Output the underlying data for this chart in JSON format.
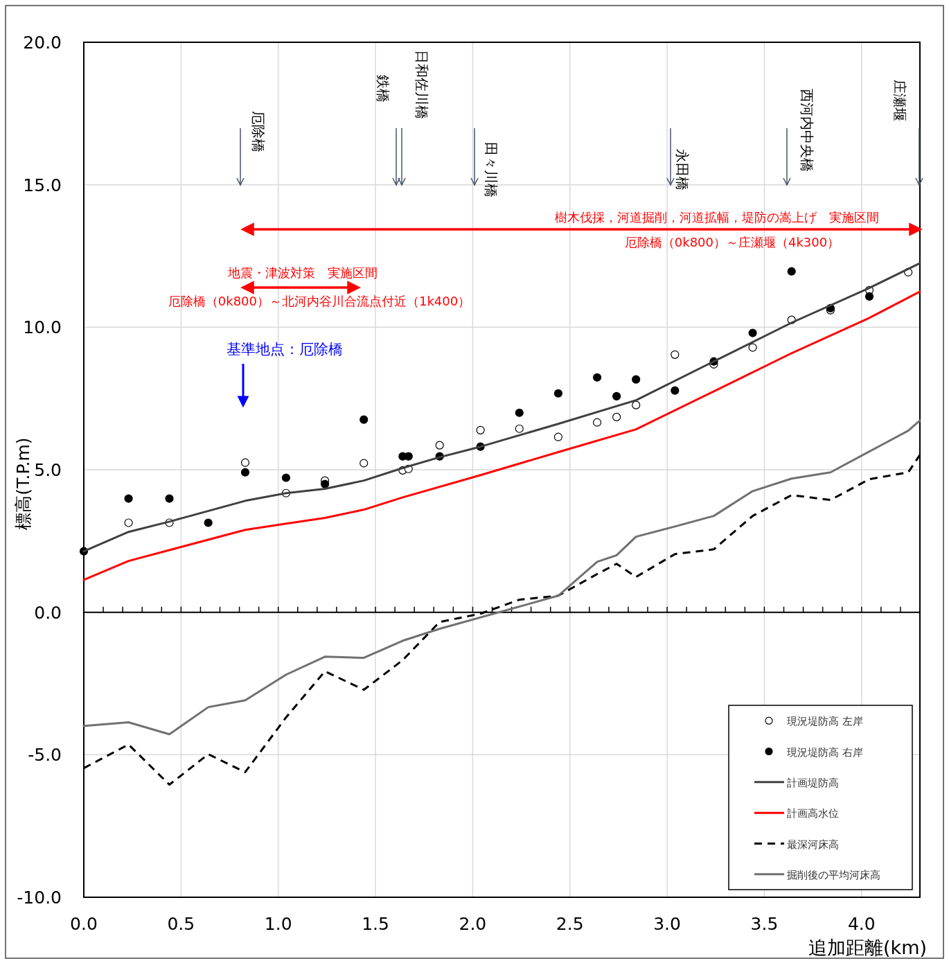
{
  "chart_data": {
    "type": "line",
    "xlabel": "追加距離(km)",
    "ylabel": "標高(T.P.m)",
    "xlim": [
      0,
      4.3
    ],
    "ylim": [
      -10,
      20
    ],
    "xticks": [
      {
        "value": 0,
        "label": "0.0"
      },
      {
        "value": 0.1,
        "label": null
      },
      {
        "value": 0.2,
        "label": null
      },
      {
        "value": 0.3,
        "label": null
      },
      {
        "value": 0.4,
        "label": null
      },
      0.5,
      {
        "value": 0.6,
        "label": null
      },
      {
        "value": 0.7,
        "label": null
      },
      {
        "value": 0.8,
        "label": null
      },
      {
        "value": 0.9,
        "label": null
      },
      {
        "value": 1,
        "label": "1.0"
      },
      {
        "value": 1.1,
        "label": null
      },
      {
        "value": 1.2,
        "label": null
      },
      {
        "value": 1.3,
        "label": null
      },
      {
        "value": 1.4,
        "label": null
      },
      1.5,
      {
        "value": 1.6,
        "label": null
      },
      {
        "value": 1.7,
        "label": null
      },
      {
        "value": 1.8,
        "label": null
      },
      {
        "value": 1.9,
        "label": null
      },
      {
        "value": 2,
        "label": "2.0"
      },
      {
        "value": 2.1,
        "label": null
      },
      {
        "value": 2.2,
        "label": null
      },
      {
        "value": 2.3,
        "label": null
      },
      {
        "value": 2.4,
        "label": null
      },
      2.5,
      {
        "value": 2.6,
        "label": null
      },
      {
        "value": 2.7,
        "label": null
      },
      {
        "value": 2.8,
        "label": null
      },
      {
        "value": 2.9,
        "label": null
      },
      {
        "value": 3,
        "label": "3.0"
      },
      {
        "value": 3.1,
        "label": null
      },
      {
        "value": 3.2,
        "label": null
      },
      {
        "value": 3.3,
        "label": null
      },
      {
        "value": 3.4,
        "label": null
      },
      3.5,
      {
        "value": 3.6,
        "label": null
      },
      {
        "value": 3.7,
        "label": null
      },
      {
        "value": 3.8,
        "label": null
      },
      {
        "value": 3.9,
        "label": null
      },
      {
        "value": 4,
        "label": "4.0"
      },
      {
        "value": 4.1,
        "label": null
      },
      {
        "value": 4.2,
        "label": null
      }
    ],
    "yticks": [
      {
        "value": -10,
        "label": "-10.0"
      },
      {
        "value": -5,
        "label": "-5.0"
      },
      {
        "value": 0,
        "label": "0.0"
      },
      {
        "value": 5,
        "label": "5.0"
      },
      {
        "value": 10,
        "label": "10.0"
      },
      {
        "value": 15,
        "label": "15.0"
      },
      {
        "value": 20,
        "label": "20.0"
      }
    ],
    "grid": true,
    "legend": "bottom right",
    "series": [
      {
        "name": "現況堤防高 左岸",
        "type": "scatter",
        "marker": "circle",
        "color": "#ffffff",
        "x": [
          0.23,
          0.44,
          0.83,
          1.04,
          1.24,
          1.44,
          1.64,
          1.67,
          1.83,
          2.04,
          2.24,
          2.44,
          2.64,
          2.74,
          2.84,
          3.04,
          3.24,
          3.44,
          3.64,
          3.84,
          4.04,
          4.24
        ],
        "values": [
          3.14,
          3.14,
          5.25,
          4.18,
          4.62,
          5.23,
          4.98,
          5.03,
          5.86,
          6.39,
          6.44,
          6.15,
          6.66,
          6.85,
          7.27,
          9.04,
          8.7,
          9.29,
          10.26,
          10.6,
          11.3,
          11.93
        ]
      },
      {
        "name": "現況堤防高 右岸",
        "type": "scatter",
        "marker": "circle",
        "color": "#000000",
        "x": [
          0,
          0.23,
          0.44,
          0.64,
          0.83,
          1.04,
          1.24,
          1.44,
          1.64,
          1.67,
          1.83,
          2.04,
          2.24,
          2.44,
          2.64,
          2.74,
          2.84,
          3.04,
          3.24,
          3.44,
          3.64,
          3.84,
          4.04
        ],
        "values": [
          2.14,
          3.99,
          3.99,
          3.14,
          4.91,
          4.72,
          4.5,
          6.76,
          5.47,
          5.47,
          5.47,
          5.81,
          7.0,
          7.68,
          8.24,
          7.58,
          8.17,
          7.78,
          8.8,
          9.8,
          11.96,
          10.67,
          11.08
        ]
      },
      {
        "name": "計画堤防高",
        "line_style": "solid",
        "color": "#404040",
        "x": [
          0,
          0.23,
          0.44,
          0.83,
          1.04,
          1.24,
          1.44,
          1.64,
          1.83,
          2.04,
          2.44,
          2.84,
          3.24,
          3.64,
          4.04,
          4.3
        ],
        "values": [
          2.14,
          2.82,
          3.18,
          3.91,
          4.18,
          4.33,
          4.62,
          5.06,
          5.44,
          5.81,
          6.61,
          7.44,
          8.8,
          10.16,
          11.38,
          12.25
        ]
      },
      {
        "name": "計画高水位",
        "line_style": "solid",
        "color": "#ff0000",
        "x": [
          0,
          0.23,
          0.83,
          1.04,
          1.24,
          1.44,
          1.64,
          2.04,
          2.44,
          2.84,
          3.24,
          3.64,
          4.04,
          4.3
        ],
        "values": [
          1.14,
          1.8,
          2.89,
          3.11,
          3.31,
          3.6,
          4.03,
          4.81,
          5.62,
          6.42,
          7.75,
          9.09,
          10.33,
          11.25
        ]
      },
      {
        "name": "最深河床高",
        "line_style": "dashed",
        "color": "#000000",
        "x": [
          0,
          0.23,
          0.44,
          0.64,
          0.83,
          1.04,
          1.24,
          1.44,
          1.64,
          1.83,
          2.04,
          2.24,
          2.44,
          2.64,
          2.74,
          2.84,
          3.04,
          3.24,
          3.44,
          3.64,
          3.84,
          4.04,
          4.24,
          4.3
        ],
        "values": [
          -5.47,
          -4.64,
          -6.05,
          -4.98,
          -5.61,
          -3.69,
          -2.07,
          -2.72,
          -1.68,
          -0.34,
          -0.05,
          0.44,
          0.58,
          1.34,
          1.7,
          1.24,
          2.04,
          2.21,
          3.38,
          4.11,
          3.94,
          4.67,
          4.91,
          5.52
        ]
      },
      {
        "name": "掘削後の平均河床高",
        "line_style": "solid",
        "color": "#707070",
        "x": [
          0,
          0.23,
          0.44,
          0.64,
          0.83,
          1.04,
          1.24,
          1.44,
          1.64,
          1.83,
          2.44,
          2.64,
          2.74,
          2.84,
          3.04,
          3.24,
          3.44,
          3.64,
          3.84,
          4.04,
          4.24,
          4.3
        ],
        "values": [
          -3.99,
          -3.86,
          -4.28,
          -3.33,
          -3.09,
          -2.19,
          -1.56,
          -1.6,
          -1.0,
          -0.58,
          0.58,
          1.77,
          2.0,
          2.65,
          3.01,
          3.38,
          4.25,
          4.69,
          4.91,
          5.64,
          6.37,
          6.73
        ]
      }
    ],
    "annotations": [
      "厄除橋",
      "鉄橋",
      "日和佐川橋",
      "田々川橋",
      "永田橋",
      "西河内中央橋",
      "庄瀬堰",
      "樹木伐採，河道掘削，河道拡幅，堤防の嵩上げ　実施区間",
      "厄除橋（0k800）～庄瀬堰（4k300）",
      "地震・津波対策　実施区間",
      "厄除橋（0k800）～北河内谷川合流点付近（1k400）",
      "基準地点：厄除橋"
    ]
  }
}
